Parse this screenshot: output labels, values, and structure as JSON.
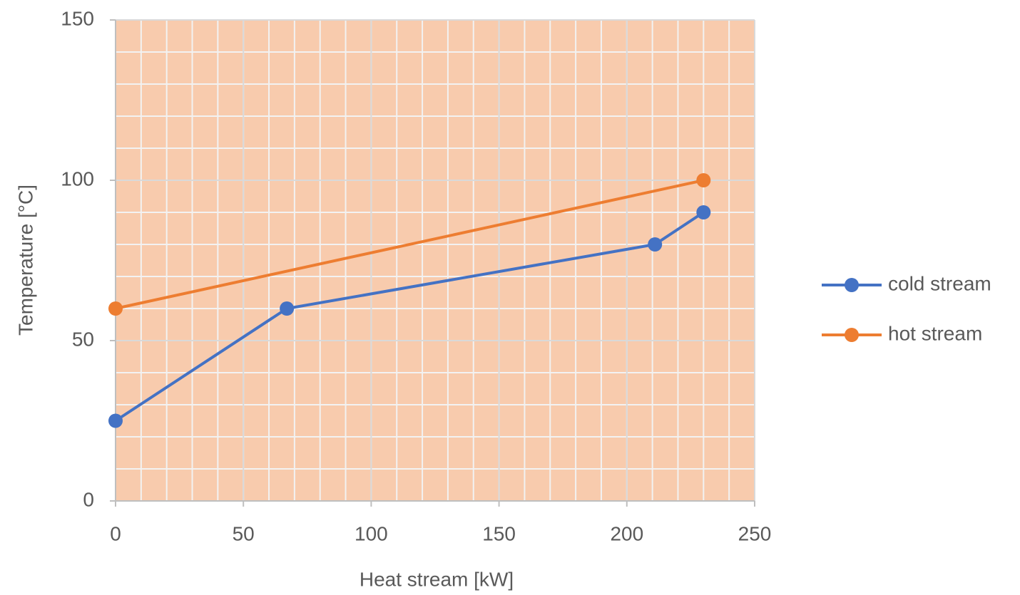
{
  "chart_data": {
    "type": "line",
    "xlabel": "Heat stream [kW]",
    "ylabel": "Temperature [°C]",
    "series": [
      {
        "name": "cold stream",
        "color": "#4472c4",
        "x": [
          0,
          67,
          211,
          230
        ],
        "values": [
          25,
          60,
          80,
          90
        ]
      },
      {
        "name": "hot stream",
        "color": "#ed7d31",
        "x": [
          0,
          230
        ],
        "values": [
          60,
          100
        ]
      }
    ],
    "xlim": [
      0,
      250
    ],
    "xticks": [
      0,
      50,
      100,
      150,
      200,
      250
    ],
    "ylim": [
      0,
      150
    ],
    "yticks": [
      0,
      50,
      100,
      150
    ],
    "grid": true,
    "minor_grid_step": 10,
    "plot_background": "#f8cbad",
    "legend": "right"
  }
}
